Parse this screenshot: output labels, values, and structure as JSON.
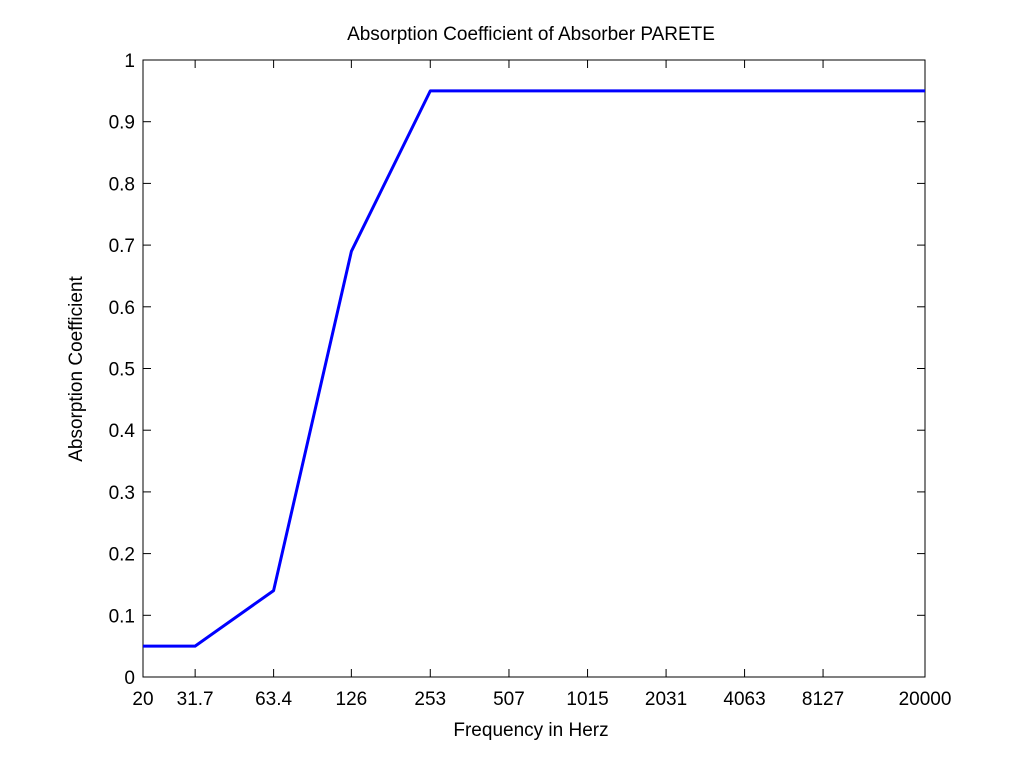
{
  "chart_data": {
    "type": "line",
    "title": "Absorption Coefficient of Absorber PARETE",
    "xlabel": "Frequency in Herz",
    "ylabel": "Absorption Coefficient",
    "x_scale": "log",
    "xlim": [
      20,
      20000
    ],
    "ylim": [
      0,
      1
    ],
    "grid": false,
    "x_ticks": [
      20,
      31.7,
      63.4,
      126,
      253,
      507,
      1015,
      2031,
      4063,
      8127,
      20000
    ],
    "x_tick_labels": [
      "20",
      "31.7",
      "63.4",
      "126",
      "253",
      "507",
      "1015",
      "2031",
      "4063",
      "8127",
      "20000"
    ],
    "y_ticks": [
      0,
      0.1,
      0.2,
      0.3,
      0.4,
      0.5,
      0.6,
      0.7,
      0.8,
      0.9,
      1
    ],
    "y_tick_labels": [
      "0",
      "0.1",
      "0.2",
      "0.3",
      "0.4",
      "0.5",
      "0.6",
      "0.7",
      "0.8",
      "0.9",
      "1"
    ],
    "series": [
      {
        "color": "#0000ff",
        "x": [
          20,
          31.7,
          63.4,
          126,
          253,
          20000
        ],
        "y": [
          0.05,
          0.05,
          0.14,
          0.69,
          0.95,
          0.95
        ]
      }
    ]
  }
}
